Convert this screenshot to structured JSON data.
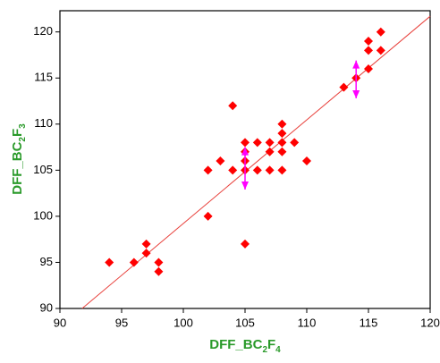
{
  "chart_data": {
    "type": "scatter",
    "xlabel": [
      "DFF_BC",
      "2",
      "F",
      "4"
    ],
    "ylabel": [
      "DFF_BC",
      "2",
      "F",
      "3"
    ],
    "label_color": "#2a9a2a",
    "x": [
      94,
      96,
      97,
      97,
      98,
      98,
      102,
      102,
      103,
      104,
      104,
      105,
      105,
      105,
      105,
      105,
      106,
      106,
      107,
      107,
      107,
      108,
      108,
      108,
      108,
      108,
      109,
      110,
      113,
      114,
      115,
      115,
      115,
      116,
      116
    ],
    "y": [
      95,
      95,
      97,
      96,
      95,
      94,
      100,
      105,
      106,
      112,
      105,
      108,
      107,
      106,
      105,
      97,
      108,
      105,
      108,
      107,
      105,
      110,
      109,
      108,
      107,
      105,
      108,
      106,
      114,
      115,
      119,
      118,
      116,
      120,
      118
    ],
    "color": "#ff0000",
    "fit": {
      "x": [
        91.8,
        120
      ],
      "y": [
        90,
        121.7
      ],
      "color": "#e8413c"
    },
    "arrows": {
      "x": [
        105,
        114
      ],
      "low": [
        102.9,
        112.8
      ],
      "high": [
        107.5,
        116.9
      ],
      "color": "#ff00ff"
    },
    "xlim": [
      90,
      120
    ],
    "ylim": [
      90,
      122.3
    ],
    "xticks": [
      90,
      95,
      100,
      105,
      110,
      115,
      120
    ],
    "yticks": [
      90,
      95,
      100,
      105,
      110,
      115,
      120
    ]
  }
}
